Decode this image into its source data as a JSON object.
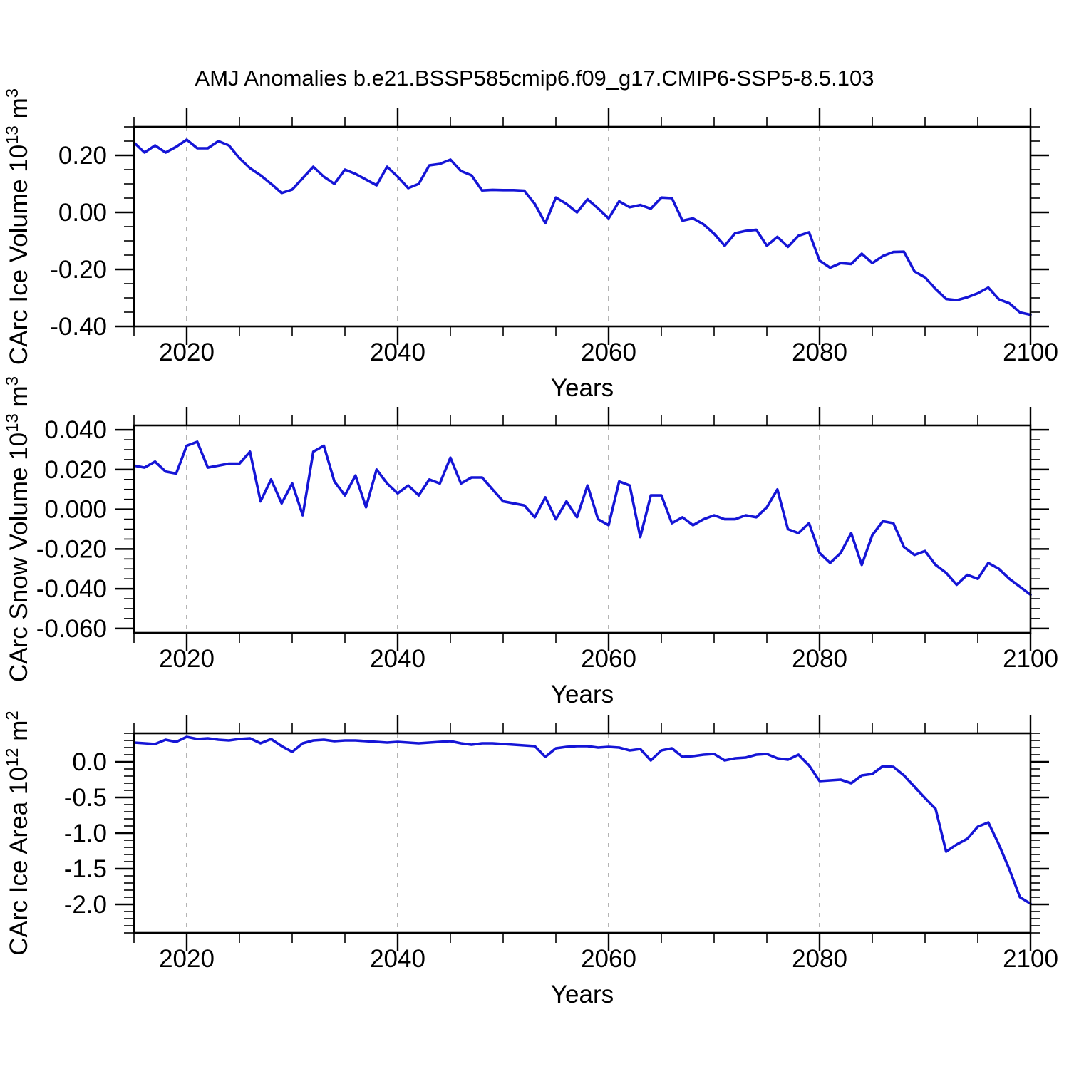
{
  "title": "AMJ Anomalies b.e21.BSSP585cmip6.f09_g17.CMIP6-SSP5-8.5.103",
  "colors": {
    "line": "#1515d6",
    "axis": "#000000",
    "grid": "#8c8c8c",
    "text": "#000000",
    "background": "#ffffff"
  },
  "years": [
    2015,
    2016,
    2017,
    2018,
    2019,
    2020,
    2021,
    2022,
    2023,
    2024,
    2025,
    2026,
    2027,
    2028,
    2029,
    2030,
    2031,
    2032,
    2033,
    2034,
    2035,
    2036,
    2037,
    2038,
    2039,
    2040,
    2041,
    2042,
    2043,
    2044,
    2045,
    2046,
    2047,
    2048,
    2049,
    2050,
    2051,
    2052,
    2053,
    2054,
    2055,
    2056,
    2057,
    2058,
    2059,
    2060,
    2061,
    2062,
    2063,
    2064,
    2065,
    2066,
    2067,
    2068,
    2069,
    2070,
    2071,
    2072,
    2073,
    2074,
    2075,
    2076,
    2077,
    2078,
    2079,
    2080,
    2081,
    2082,
    2083,
    2084,
    2085,
    2086,
    2087,
    2088,
    2089,
    2090,
    2091,
    2092,
    2093,
    2094,
    2095,
    2096,
    2097,
    2098,
    2099,
    2100
  ],
  "chart_data": [
    {
      "id": "ice-volume",
      "type": "line",
      "title": "",
      "ylabel": "CArc Ice Volume 10^13 m^3",
      "ylabel_parts": [
        {
          "text": "CArc Ice Volume 10",
          "sup": false
        },
        {
          "text": "13",
          "sup": true
        },
        {
          "text": " m",
          "sup": false
        },
        {
          "text": "3",
          "sup": true
        }
      ],
      "xlabel": "Years",
      "xlim": [
        2015,
        2100
      ],
      "x_ticks": [
        2020,
        2040,
        2060,
        2080,
        2100
      ],
      "x_tick_labels": [
        "2020",
        "2040",
        "2060",
        "2080",
        "2100"
      ],
      "x_minor_step": 5,
      "x_gridlines": [
        2020,
        2040,
        2060,
        2080
      ],
      "ylim": [
        -0.4,
        0.3
      ],
      "y_ticks": [
        0.2,
        0.0,
        -0.2,
        -0.4
      ],
      "y_tick_labels": [
        "0.20",
        "0.00",
        "-0.20",
        "-0.40"
      ],
      "y_minor_step": 0.05,
      "grid": "vertical-dashed",
      "legend": "none",
      "values": [
        0.245,
        0.21,
        0.235,
        0.21,
        0.23,
        0.255,
        0.225,
        0.225,
        0.25,
        0.235,
        0.19,
        0.155,
        0.13,
        0.1,
        0.068,
        0.08,
        0.12,
        0.16,
        0.125,
        0.1,
        0.15,
        0.135,
        0.115,
        0.095,
        0.16,
        0.125,
        0.085,
        0.1,
        0.165,
        0.17,
        0.185,
        0.145,
        0.13,
        0.077,
        0.079,
        0.078,
        0.078,
        0.076,
        0.03,
        -0.038,
        0.052,
        0.03,
        0.0,
        0.046,
        0.014,
        -0.021,
        0.039,
        0.018,
        0.026,
        0.013,
        0.052,
        0.05,
        -0.029,
        -0.021,
        -0.042,
        -0.075,
        -0.117,
        -0.073,
        -0.065,
        -0.061,
        -0.117,
        -0.086,
        -0.121,
        -0.082,
        -0.07,
        -0.169,
        -0.194,
        -0.178,
        -0.181,
        -0.145,
        -0.178,
        -0.153,
        -0.139,
        -0.138,
        -0.207,
        -0.228,
        -0.269,
        -0.304,
        -0.308,
        -0.298,
        -0.284,
        -0.264,
        -0.305,
        -0.319,
        -0.351,
        -0.359
      ]
    },
    {
      "id": "snow-volume",
      "type": "line",
      "title": "",
      "ylabel": "CArc Snow Volume 10^13 m^3",
      "ylabel_parts": [
        {
          "text": "CArc Snow Volume 10",
          "sup": false
        },
        {
          "text": "13",
          "sup": true
        },
        {
          "text": " m",
          "sup": false
        },
        {
          "text": "3",
          "sup": true
        }
      ],
      "xlabel": "Years",
      "xlim": [
        2015,
        2100
      ],
      "x_ticks": [
        2020,
        2040,
        2060,
        2080,
        2100
      ],
      "x_tick_labels": [
        "2020",
        "2040",
        "2060",
        "2080",
        "2100"
      ],
      "x_minor_step": 5,
      "x_gridlines": [
        2020,
        2040,
        2060,
        2080
      ],
      "ylim": [
        -0.0622,
        0.0422
      ],
      "y_ticks": [
        0.04,
        0.02,
        0.0,
        -0.02,
        -0.04,
        -0.06
      ],
      "y_tick_labels": [
        "0.040",
        "0.020",
        "0.000",
        "-0.020",
        "-0.040",
        "-0.060"
      ],
      "y_minor_step": 0.005,
      "grid": "vertical-dashed",
      "legend": "none",
      "values": [
        0.022,
        0.021,
        0.024,
        0.019,
        0.018,
        0.032,
        0.034,
        0.021,
        0.022,
        0.023,
        0.023,
        0.029,
        0.004,
        0.015,
        0.003,
        0.013,
        -0.003,
        0.029,
        0.032,
        0.014,
        0.007,
        0.017,
        0.001,
        0.02,
        0.013,
        0.008,
        0.012,
        0.007,
        0.015,
        0.013,
        0.026,
        0.013,
        0.016,
        0.016,
        0.01,
        0.004,
        0.003,
        0.002,
        -0.004,
        0.006,
        -0.005,
        0.004,
        -0.004,
        0.012,
        -0.005,
        -0.008,
        0.014,
        0.012,
        -0.014,
        0.007,
        0.007,
        -0.007,
        -0.004,
        -0.008,
        -0.005,
        -0.003,
        -0.005,
        -0.005,
        -0.003,
        -0.004,
        0.001,
        0.01,
        -0.01,
        -0.012,
        -0.007,
        -0.022,
        -0.027,
        -0.022,
        -0.012,
        -0.028,
        -0.013,
        -0.006,
        -0.007,
        -0.019,
        -0.023,
        -0.021,
        -0.028,
        -0.032,
        -0.038,
        -0.033,
        -0.035,
        -0.027,
        -0.03,
        -0.035,
        -0.039,
        -0.043
      ]
    },
    {
      "id": "ice-area",
      "type": "line",
      "title": "",
      "ylabel": "CArc Ice Area 10^12 m^2",
      "ylabel_parts": [
        {
          "text": "CArc Ice Area 10",
          "sup": false
        },
        {
          "text": "12",
          "sup": true
        },
        {
          "text": " m",
          "sup": false
        },
        {
          "text": "2",
          "sup": true
        }
      ],
      "xlabel": "Years",
      "xlim": [
        2015,
        2100
      ],
      "x_ticks": [
        2020,
        2040,
        2060,
        2080,
        2100
      ],
      "x_tick_labels": [
        "2020",
        "2040",
        "2060",
        "2080",
        "2100"
      ],
      "x_minor_step": 5,
      "x_gridlines": [
        2020,
        2040,
        2060,
        2080
      ],
      "ylim": [
        -2.4,
        0.4
      ],
      "y_ticks": [
        0.0,
        -0.5,
        -1.0,
        -1.5,
        -2.0
      ],
      "y_tick_labels": [
        "0.0",
        "-0.5",
        "-1.0",
        "-1.5",
        "-2.0"
      ],
      "y_minor_step": 0.1,
      "grid": "vertical-dashed",
      "legend": "none",
      "values": [
        0.27,
        0.26,
        0.25,
        0.31,
        0.28,
        0.35,
        0.32,
        0.33,
        0.31,
        0.3,
        0.32,
        0.33,
        0.26,
        0.32,
        0.22,
        0.14,
        0.26,
        0.3,
        0.31,
        0.29,
        0.3,
        0.3,
        0.29,
        0.28,
        0.27,
        0.28,
        0.27,
        0.26,
        0.27,
        0.28,
        0.29,
        0.26,
        0.24,
        0.26,
        0.26,
        0.25,
        0.24,
        0.23,
        0.22,
        0.07,
        0.19,
        0.21,
        0.22,
        0.22,
        0.2,
        0.21,
        0.2,
        0.16,
        0.18,
        0.02,
        0.16,
        0.19,
        0.07,
        0.08,
        0.1,
        0.11,
        0.02,
        0.05,
        0.06,
        0.1,
        0.11,
        0.05,
        0.03,
        0.1,
        -0.05,
        -0.27,
        -0.26,
        -0.25,
        -0.3,
        -0.19,
        -0.17,
        -0.06,
        -0.07,
        -0.19,
        -0.35,
        -0.51,
        -0.66,
        -1.26,
        -1.16,
        -1.08,
        -0.91,
        -0.85,
        -1.16,
        -1.51,
        -1.9,
        -1.99
      ]
    }
  ]
}
